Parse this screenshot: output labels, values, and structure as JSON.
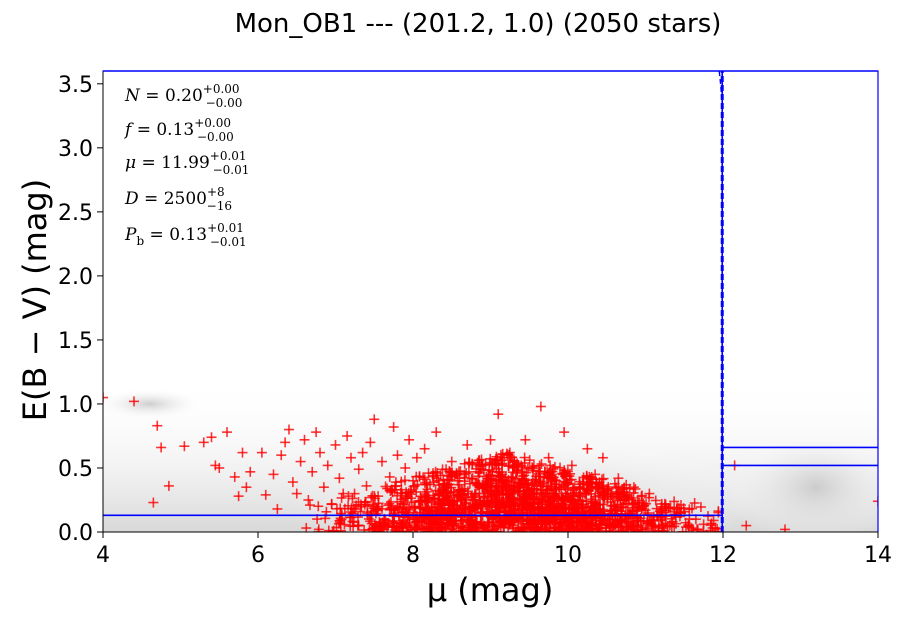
{
  "chart_data": {
    "type": "scatter",
    "title": "Mon_OB1 --- (201.2, 1.0) (2050 stars)",
    "xlabel": "μ (mag)",
    "ylabel": "E(B − V) (mag)",
    "xlim": [
      4,
      14
    ],
    "ylim": [
      0,
      3.6
    ],
    "xticks": [
      "4",
      "6",
      "8",
      "10",
      "12",
      "14"
    ],
    "yticks": [
      "0.0",
      "0.5",
      "1.0",
      "1.5",
      "2.0",
      "2.5",
      "3.0",
      "3.5"
    ],
    "grid": false,
    "colors": {
      "stars": "#ff0000",
      "model": "#0000ff",
      "background": "#cccccc"
    },
    "annotations": {
      "N": {
        "label": "N",
        "value": "0.20",
        "plus": "+0.00",
        "minus": "−0.00"
      },
      "f": {
        "label": "f",
        "value": "0.13",
        "plus": "+0.00",
        "minus": "−0.00"
      },
      "mu": {
        "label": "μ",
        "value": "11.99",
        "plus": "+0.01",
        "minus": "−0.01"
      },
      "D": {
        "label": "D",
        "value": "2500",
        "plus": "+8",
        "minus": "−16"
      },
      "Pb": {
        "label": "P",
        "label_sub": "b",
        "value": "0.13",
        "plus": "+0.01",
        "minus": "−0.01"
      }
    },
    "model_lines": {
      "foreground_ebv": 0.13,
      "step_mu": 11.99,
      "background_ebv_low": 0.52,
      "background_ebv_high": 0.66
    },
    "stars": {
      "n_stars": 2050,
      "shown_points": [
        [
          4.0,
          1.05
        ],
        [
          4.4,
          1.02
        ],
        [
          4.7,
          0.83
        ],
        [
          4.75,
          0.66
        ],
        [
          4.85,
          0.36
        ],
        [
          4.65,
          0.23
        ],
        [
          5.05,
          0.67
        ],
        [
          5.3,
          0.7
        ],
        [
          5.4,
          0.74
        ],
        [
          5.5,
          0.5
        ],
        [
          5.45,
          0.52
        ],
        [
          5.6,
          0.78
        ],
        [
          5.7,
          0.43
        ],
        [
          5.75,
          0.28
        ],
        [
          5.8,
          0.62
        ],
        [
          5.85,
          0.35
        ],
        [
          5.9,
          0.47
        ],
        [
          6.05,
          0.62
        ],
        [
          6.1,
          0.29
        ],
        [
          6.2,
          0.45
        ],
        [
          6.25,
          0.18
        ],
        [
          6.3,
          0.6
        ],
        [
          6.35,
          0.7
        ],
        [
          6.4,
          0.8
        ],
        [
          6.45,
          0.39
        ],
        [
          6.5,
          0.3
        ],
        [
          6.55,
          0.55
        ],
        [
          6.6,
          0.72
        ],
        [
          6.65,
          0.25
        ],
        [
          6.7,
          0.47
        ],
        [
          6.75,
          0.78
        ],
        [
          6.8,
          0.62
        ],
        [
          6.85,
          0.35
        ],
        [
          6.9,
          0.52
        ],
        [
          6.95,
          0.22
        ],
        [
          7.0,
          0.68
        ],
        [
          7.05,
          0.42
        ],
        [
          7.1,
          0.3
        ],
        [
          7.15,
          0.75
        ],
        [
          7.2,
          0.58
        ],
        [
          7.25,
          0.18
        ],
        [
          7.3,
          0.49
        ],
        [
          7.35,
          0.62
        ],
        [
          7.4,
          0.36
        ],
        [
          7.45,
          0.7
        ],
        [
          7.5,
          0.88
        ],
        [
          7.55,
          0.28
        ],
        [
          7.6,
          0.55
        ],
        [
          7.7,
          0.43
        ],
        [
          7.75,
          0.82
        ],
        [
          7.8,
          0.6
        ],
        [
          7.85,
          0.33
        ],
        [
          7.9,
          0.5
        ],
        [
          7.95,
          0.72
        ],
        [
          8.0,
          0.4
        ],
        [
          8.05,
          0.58
        ],
        [
          8.1,
          0.24
        ],
        [
          8.15,
          0.65
        ],
        [
          8.2,
          0.46
        ],
        [
          8.3,
          0.78
        ],
        [
          8.4,
          0.35
        ],
        [
          8.5,
          0.55
        ],
        [
          8.6,
          0.42
        ],
        [
          8.7,
          0.68
        ],
        [
          8.8,
          0.3
        ],
        [
          8.9,
          0.52
        ],
        [
          9.0,
          0.72
        ],
        [
          9.1,
          0.92
        ],
        [
          9.15,
          0.45
        ],
        [
          9.25,
          0.62
        ],
        [
          9.35,
          0.35
        ],
        [
          9.45,
          0.72
        ],
        [
          9.55,
          0.48
        ],
        [
          9.65,
          0.98
        ],
        [
          9.75,
          0.58
        ],
        [
          9.85,
          0.4
        ],
        [
          9.95,
          0.78
        ],
        [
          10.05,
          0.52
        ],
        [
          10.15,
          0.35
        ],
        [
          10.25,
          0.65
        ],
        [
          10.35,
          0.45
        ],
        [
          10.45,
          0.58
        ],
        [
          10.55,
          0.3
        ],
        [
          10.65,
          0.42
        ],
        [
          10.75,
          0.25
        ],
        [
          10.85,
          0.35
        ],
        [
          10.95,
          0.18
        ],
        [
          11.05,
          0.3
        ],
        [
          11.15,
          0.12
        ],
        [
          11.25,
          0.22
        ],
        [
          11.35,
          0.08
        ],
        [
          11.45,
          0.15
        ],
        [
          11.55,
          0.05
        ],
        [
          11.65,
          0.1
        ],
        [
          11.75,
          0.06
        ],
        [
          11.9,
          0.03
        ],
        [
          12.15,
          0.52
        ],
        [
          12.3,
          0.05
        ],
        [
          12.8,
          0.02
        ],
        [
          14.0,
          0.24
        ]
      ]
    }
  }
}
